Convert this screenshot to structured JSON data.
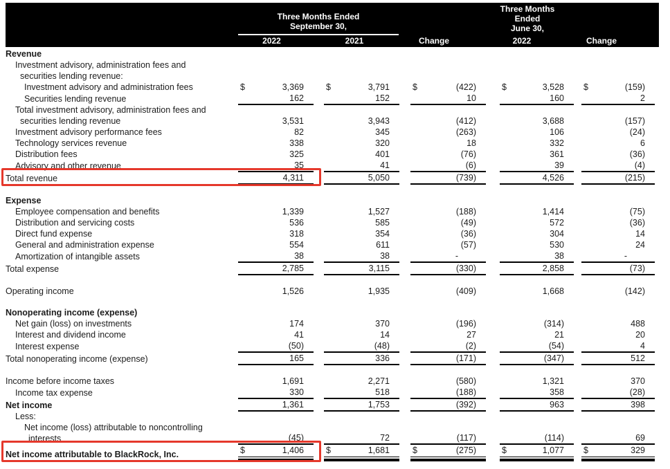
{
  "colors": {
    "header_bg": "#000000",
    "header_text": "#ffffff",
    "body_text": "#1c1c1c",
    "rule_line": "#000000",
    "annotation_red": "#e5382b"
  },
  "currency_symbol": "$",
  "header": {
    "group1_line1": "Three Months Ended",
    "group1_line2": "September 30,",
    "col_2022_sep": "2022",
    "col_2021": "2021",
    "col_change_1": "Change",
    "group2_line1": "Three Months",
    "group2_line2": "Ended",
    "group2_line3": "June 30,",
    "col_2022_jun": "2022",
    "col_change_2": "Change"
  },
  "rows": [
    {
      "label": "Revenue",
      "indent": 0,
      "bold": true
    },
    {
      "label": "Investment advisory, administration fees and",
      "label2": "securities lending revenue:",
      "indent": 1
    },
    {
      "label": "Investment advisory and administration fees",
      "indent": 2,
      "dollar": true,
      "values": [
        "3,369",
        "3,791",
        "(422)",
        "3,528",
        "(159)"
      ]
    },
    {
      "label": "Securities lending revenue",
      "indent": 2,
      "values": [
        "162",
        "152",
        "10",
        "160",
        "2"
      ],
      "ul": true
    },
    {
      "label": "Total investment advisory, administration fees and",
      "label2": "securities lending revenue",
      "indent": 1,
      "values": [
        "3,531",
        "3,943",
        "(412)",
        "3,688",
        "(157)"
      ]
    },
    {
      "label": "Investment advisory performance fees",
      "indent": 1,
      "values": [
        "82",
        "345",
        "(263)",
        "106",
        "(24)"
      ]
    },
    {
      "label": "Technology services revenue",
      "indent": 1,
      "values": [
        "338",
        "320",
        "18",
        "332",
        "6"
      ]
    },
    {
      "label": "Distribution fees",
      "indent": 1,
      "values": [
        "325",
        "401",
        "(76)",
        "361",
        "(36)"
      ]
    },
    {
      "label": "Advisory and other revenue",
      "indent": 1,
      "values": [
        "35",
        "41",
        "(6)",
        "39",
        "(4)"
      ],
      "ul": true
    },
    {
      "label": "Total revenue",
      "indent": 0,
      "values": [
        "4,311",
        "5,050",
        "(739)",
        "4,526",
        "(215)"
      ],
      "ul": true,
      "highlight": true
    },
    {
      "spacer": true
    },
    {
      "label": "Expense",
      "indent": 0,
      "bold": true
    },
    {
      "label": "Employee compensation and benefits",
      "indent": 1,
      "values": [
        "1,339",
        "1,527",
        "(188)",
        "1,414",
        "(75)"
      ]
    },
    {
      "label": "Distribution and servicing costs",
      "indent": 1,
      "values": [
        "536",
        "585",
        "(49)",
        "572",
        "(36)"
      ]
    },
    {
      "label": "Direct fund expense",
      "indent": 1,
      "values": [
        "318",
        "354",
        "(36)",
        "304",
        "14"
      ]
    },
    {
      "label": "General and administration expense",
      "indent": 1,
      "values": [
        "554",
        "611",
        "(57)",
        "530",
        "24"
      ]
    },
    {
      "label": "Amortization of intangible assets",
      "indent": 1,
      "values": [
        "38",
        "38",
        "-",
        "38",
        "-"
      ],
      "ul": true
    },
    {
      "label": "Total expense",
      "indent": 0,
      "values": [
        "2,785",
        "3,115",
        "(330)",
        "2,858",
        "(73)"
      ],
      "ul": true
    },
    {
      "spacer": true
    },
    {
      "label": "Operating income",
      "indent": 0,
      "values": [
        "1,526",
        "1,935",
        "(409)",
        "1,668",
        "(142)"
      ]
    },
    {
      "spacer": true
    },
    {
      "label": "Nonoperating income (expense)",
      "indent": 0,
      "bold": true
    },
    {
      "label": "Net gain (loss) on investments",
      "indent": 1,
      "values": [
        "174",
        "370",
        "(196)",
        "(314)",
        "488"
      ]
    },
    {
      "label": "Interest and dividend income",
      "indent": 1,
      "values": [
        "41",
        "14",
        "27",
        "21",
        "20"
      ]
    },
    {
      "label": "Interest expense",
      "indent": 1,
      "values": [
        "(50)",
        "(48)",
        "(2)",
        "(54)",
        "4"
      ],
      "ul": true
    },
    {
      "label": "Total nonoperating income (expense)",
      "indent": 0,
      "values": [
        "165",
        "336",
        "(171)",
        "(347)",
        "512"
      ],
      "ul": true
    },
    {
      "spacer": true
    },
    {
      "label": "Income before income taxes",
      "indent": 0,
      "values": [
        "1,691",
        "2,271",
        "(580)",
        "1,321",
        "370"
      ]
    },
    {
      "label": "Income tax expense",
      "indent": 1,
      "values": [
        "330",
        "518",
        "(188)",
        "358",
        "(28)"
      ],
      "ul": true
    },
    {
      "label": "Net income",
      "indent": 0,
      "bold": true,
      "values": [
        "1,361",
        "1,753",
        "(392)",
        "963",
        "398"
      ],
      "ul": true
    },
    {
      "label": "Less:",
      "indent": 1
    },
    {
      "label": "Net income (loss) attributable to noncontrolling",
      "label2": "interests",
      "indent": 2,
      "values": [
        "(45)",
        "72",
        "(117)",
        "(114)",
        "69"
      ],
      "ul": true
    },
    {
      "label": "Net income attributable to BlackRock, Inc.",
      "indent": 0,
      "bold": true,
      "dollar": true,
      "values": [
        "1,406",
        "1,681",
        "(275)",
        "1,077",
        "329"
      ],
      "dbl": true,
      "highlight": true
    }
  ]
}
